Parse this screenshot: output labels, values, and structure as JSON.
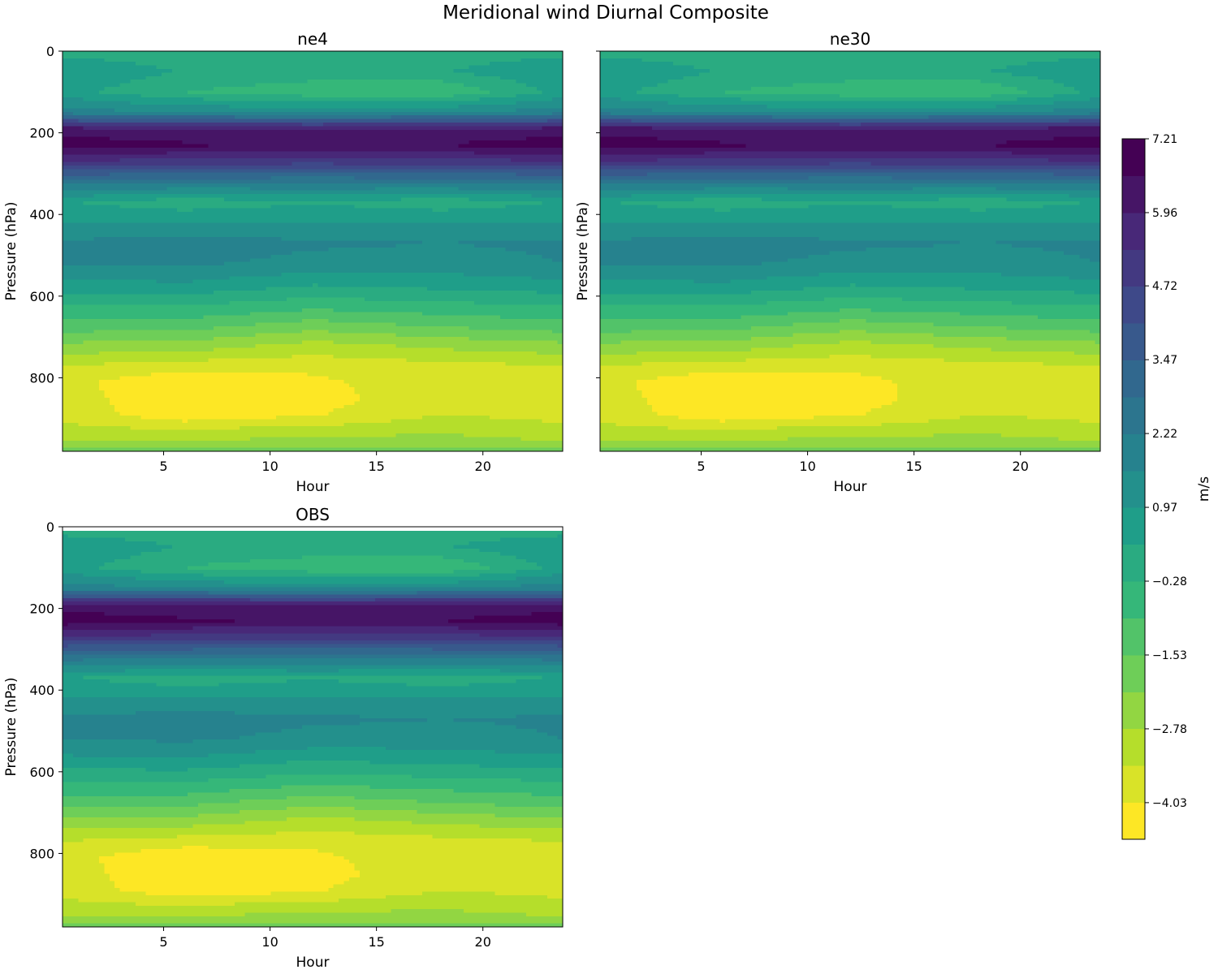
{
  "figure": {
    "title": "Meridional wind Diurnal Composite"
  },
  "chart_data": [
    {
      "type": "contourf",
      "title": "ne4",
      "xlabel": "Hour",
      "ylabel": "Pressure (hPa)",
      "xlim": [
        0.25,
        23.75
      ],
      "ylim": [
        980,
        0
      ],
      "xticks": [
        5,
        10,
        15,
        20
      ],
      "yticks": [
        0,
        200,
        400,
        600,
        800
      ],
      "x": [
        0.25,
        6,
        12,
        18,
        23.75
      ],
      "pressure_levels": [
        0,
        50,
        100,
        150,
        190,
        230,
        270,
        320,
        370,
        420,
        470,
        520,
        570,
        620,
        670,
        720,
        770,
        810,
        850,
        890,
        930,
        960,
        980
      ],
      "values": [
        [
          0.1,
          0.0,
          -0.1,
          0.0,
          0.1
        ],
        [
          0.9,
          0.3,
          0.1,
          0.3,
          0.9
        ],
        [
          0.6,
          -0.3,
          -0.7,
          -0.9,
          0.6
        ],
        [
          1.9,
          1.6,
          1.4,
          1.6,
          1.9
        ],
        [
          6.2,
          6.0,
          5.9,
          6.0,
          6.2
        ],
        [
          7.0,
          6.7,
          6.5,
          6.6,
          7.0
        ],
        [
          5.3,
          5.1,
          5.0,
          5.1,
          5.3
        ],
        [
          2.5,
          2.4,
          2.3,
          2.4,
          2.5
        ],
        [
          0.4,
          -0.1,
          0.3,
          -0.1,
          0.4
        ],
        [
          1.0,
          1.0,
          1.0,
          1.0,
          1.0
        ],
        [
          1.7,
          1.9,
          1.7,
          1.6,
          1.7
        ],
        [
          1.6,
          1.7,
          1.4,
          1.3,
          1.6
        ],
        [
          0.8,
          0.9,
          0.4,
          0.6,
          0.8
        ],
        [
          -0.2,
          -0.2,
          -0.6,
          -0.4,
          -0.2
        ],
        [
          -1.1,
          -1.2,
          -1.8,
          -1.4,
          -1.1
        ],
        [
          -2.3,
          -2.4,
          -3.0,
          -2.6,
          -2.3
        ],
        [
          -3.4,
          -3.7,
          -3.8,
          -3.6,
          -3.4
        ],
        [
          -3.8,
          -4.6,
          -4.2,
          -3.5,
          -3.8
        ],
        [
          -3.7,
          -4.6,
          -4.3,
          -3.6,
          -3.7
        ],
        [
          -3.6,
          -4.5,
          -4.1,
          -3.4,
          -3.6
        ],
        [
          -3.2,
          -3.3,
          -3.1,
          -2.9,
          -3.2
        ],
        [
          -2.7,
          -2.6,
          -2.5,
          -2.4,
          -2.7
        ],
        [
          -1.9,
          -1.8,
          -1.7,
          -1.8,
          -1.9
        ]
      ]
    },
    {
      "type": "contourf",
      "title": "ne30",
      "xlabel": "Hour",
      "ylabel": "Pressure (hPa)",
      "xlim": [
        0.25,
        23.75
      ],
      "ylim": [
        980,
        0
      ],
      "xticks": [
        5,
        10,
        15,
        20
      ],
      "yticks": [],
      "x": [
        0.25,
        6,
        12,
        18,
        23.75
      ],
      "pressure_levels": [
        0,
        50,
        100,
        150,
        190,
        230,
        270,
        320,
        370,
        420,
        470,
        520,
        570,
        620,
        670,
        720,
        770,
        810,
        850,
        890,
        930,
        960,
        980
      ],
      "values": [
        [
          0.1,
          0.0,
          -0.1,
          0.0,
          0.1
        ],
        [
          0.9,
          0.3,
          0.1,
          0.3,
          0.9
        ],
        [
          0.6,
          -0.3,
          -0.7,
          -0.9,
          0.6
        ],
        [
          1.9,
          1.6,
          1.4,
          1.6,
          1.9
        ],
        [
          6.3,
          6.0,
          5.9,
          6.0,
          6.3
        ],
        [
          7.0,
          6.7,
          6.5,
          6.6,
          7.0
        ],
        [
          5.3,
          5.1,
          5.0,
          5.1,
          5.3
        ],
        [
          2.5,
          2.4,
          2.3,
          2.4,
          2.5
        ],
        [
          0.4,
          -0.1,
          0.3,
          -0.1,
          0.4
        ],
        [
          1.0,
          1.0,
          1.0,
          1.0,
          1.0
        ],
        [
          1.7,
          1.9,
          1.7,
          1.6,
          1.7
        ],
        [
          1.6,
          1.7,
          1.4,
          1.3,
          1.6
        ],
        [
          0.8,
          0.9,
          0.4,
          0.6,
          0.8
        ],
        [
          -0.2,
          -0.2,
          -0.6,
          -0.4,
          -0.2
        ],
        [
          -1.1,
          -1.2,
          -1.8,
          -1.4,
          -1.1
        ],
        [
          -2.3,
          -2.4,
          -3.0,
          -2.6,
          -2.3
        ],
        [
          -3.4,
          -3.7,
          -3.8,
          -3.6,
          -3.4
        ],
        [
          -3.8,
          -4.6,
          -4.3,
          -3.5,
          -3.8
        ],
        [
          -3.7,
          -4.6,
          -4.3,
          -3.6,
          -3.7
        ],
        [
          -3.6,
          -4.5,
          -4.1,
          -3.4,
          -3.6
        ],
        [
          -3.2,
          -3.3,
          -3.1,
          -2.9,
          -3.2
        ],
        [
          -2.7,
          -2.6,
          -2.5,
          -2.4,
          -2.7
        ],
        [
          -1.9,
          -1.8,
          -1.7,
          -1.8,
          -1.9
        ]
      ]
    },
    {
      "type": "contourf",
      "title": "OBS",
      "xlabel": "Hour",
      "ylabel": "Pressure (hPa)",
      "xlim": [
        0.25,
        23.75
      ],
      "ylim": [
        980,
        0
      ],
      "xticks": [
        5,
        10,
        15,
        20
      ],
      "yticks": [
        0,
        200,
        400,
        600,
        800
      ],
      "x": [
        0.25,
        6,
        12,
        18,
        23.75
      ],
      "pressure_levels": [
        10,
        50,
        100,
        150,
        190,
        230,
        270,
        320,
        370,
        420,
        470,
        520,
        570,
        620,
        670,
        720,
        770,
        810,
        850,
        890,
        930,
        960,
        980
      ],
      "values": [
        [
          0.1,
          0.0,
          -0.1,
          0.0,
          0.1
        ],
        [
          0.9,
          0.3,
          0.1,
          0.3,
          0.9
        ],
        [
          0.6,
          -0.3,
          -0.7,
          -0.9,
          0.6
        ],
        [
          1.9,
          1.6,
          1.4,
          1.6,
          1.9
        ],
        [
          6.2,
          6.0,
          5.9,
          6.0,
          6.2
        ],
        [
          7.0,
          6.7,
          6.5,
          6.6,
          7.0
        ],
        [
          5.3,
          5.1,
          5.0,
          5.1,
          5.3
        ],
        [
          2.5,
          2.4,
          2.3,
          2.4,
          2.5
        ],
        [
          0.4,
          -0.1,
          0.3,
          -0.1,
          0.4
        ],
        [
          1.0,
          1.0,
          1.0,
          1.0,
          1.0
        ],
        [
          1.7,
          1.9,
          1.7,
          1.6,
          1.7
        ],
        [
          1.6,
          1.7,
          1.4,
          1.3,
          1.6
        ],
        [
          0.8,
          0.9,
          0.4,
          0.6,
          0.8
        ],
        [
          -0.2,
          -0.2,
          -0.6,
          -0.4,
          -0.2
        ],
        [
          -1.1,
          -1.2,
          -1.8,
          -1.4,
          -1.1
        ],
        [
          -2.3,
          -2.4,
          -3.0,
          -2.6,
          -2.3
        ],
        [
          -3.4,
          -3.7,
          -3.8,
          -3.6,
          -3.4
        ],
        [
          -3.8,
          -4.6,
          -4.2,
          -3.5,
          -3.8
        ],
        [
          -3.7,
          -4.6,
          -4.3,
          -3.6,
          -3.7
        ],
        [
          -3.6,
          -4.5,
          -4.1,
          -3.4,
          -3.6
        ],
        [
          -3.2,
          -3.3,
          -3.1,
          -2.9,
          -3.2
        ],
        [
          -2.7,
          -2.6,
          -2.5,
          -2.4,
          -2.7
        ],
        [
          -1.9,
          -1.8,
          -1.7,
          -1.8,
          -1.9
        ]
      ]
    }
  ],
  "colorbar": {
    "label": "m/s",
    "vmin": -4.65,
    "vmax": 7.21,
    "n_levels": 19,
    "ticks": [
      7.21,
      5.96,
      4.72,
      3.47,
      2.22,
      0.97,
      -0.28,
      -1.53,
      -2.78,
      -4.03
    ],
    "tick_labels": [
      "7.21",
      "5.96",
      "4.72",
      "3.47",
      "2.22",
      "0.97",
      "−0.28",
      "−1.53",
      "−2.78",
      "−4.03"
    ],
    "colormap": [
      "#fde725",
      "#b5de2b",
      "#6ece58",
      "#35b779",
      "#1f9e89",
      "#26828e",
      "#31688e",
      "#3e4989",
      "#482878",
      "#440154"
    ]
  }
}
